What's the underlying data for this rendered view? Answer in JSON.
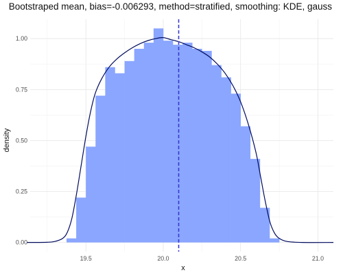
{
  "chart_data": {
    "type": "histogram",
    "title": "Bootstraped mean, bias=-0.006293, method=stratified, smoothing: KDE, gauss",
    "xlabel": "x",
    "ylabel": "density",
    "xlim": [
      19.14,
      21.1
    ],
    "ylim": [
      -0.045,
      1.095
    ],
    "x_ticks": [
      19.5,
      20.0,
      20.5,
      21.0
    ],
    "x_tick_labels": [
      "19.5",
      "20.0",
      "20.5",
      "21.0"
    ],
    "y_ticks": [
      0.0,
      0.25,
      0.5,
      0.75,
      1.0
    ],
    "y_tick_labels": [
      "0.00",
      "0.25",
      "0.50",
      "0.75",
      "1.00"
    ],
    "grid": true,
    "bar_color": "#8aa6ff",
    "curve_color": "#000b5e",
    "mean_line_color": "#3a3acc",
    "mean_line_x": 20.1,
    "histogram": {
      "bin_width": 0.0625,
      "bin_left_edges": [
        19.375,
        19.4375,
        19.5,
        19.5625,
        19.625,
        19.6875,
        19.75,
        19.8125,
        19.875,
        19.9375,
        20.0,
        20.0625,
        20.125,
        20.1875,
        20.25,
        20.3125,
        20.375,
        20.4375,
        20.5,
        20.5625,
        20.625,
        20.6875,
        20.75
      ],
      "values": [
        0.02,
        0.22,
        0.47,
        0.72,
        0.86,
        0.83,
        0.89,
        0.95,
        0.98,
        1.05,
        0.99,
        0.97,
        0.98,
        0.95,
        0.94,
        0.87,
        0.81,
        0.73,
        0.57,
        0.41,
        0.17,
        0.02,
        0.0
      ]
    },
    "kde": {
      "x": [
        19.12,
        19.25,
        19.3,
        19.35,
        19.38,
        19.41,
        19.44,
        19.47,
        19.5,
        19.53,
        19.56,
        19.6,
        19.65,
        19.7,
        19.75,
        19.8,
        19.85,
        19.9,
        19.95,
        20.0,
        20.05,
        20.1,
        20.15,
        20.2,
        20.25,
        20.3,
        20.35,
        20.4,
        20.45,
        20.5,
        20.55,
        20.6,
        20.63,
        20.66,
        20.69,
        20.72,
        20.75,
        20.8,
        20.9,
        21.1
      ],
      "y": [
        0.0,
        0.001,
        0.005,
        0.02,
        0.05,
        0.12,
        0.24,
        0.38,
        0.52,
        0.64,
        0.73,
        0.8,
        0.86,
        0.9,
        0.93,
        0.955,
        0.975,
        0.99,
        1.0,
        1.005,
        0.995,
        0.985,
        0.97,
        0.955,
        0.935,
        0.91,
        0.875,
        0.83,
        0.77,
        0.69,
        0.58,
        0.44,
        0.32,
        0.2,
        0.1,
        0.045,
        0.02,
        0.005,
        0.0,
        0.0
      ]
    }
  }
}
